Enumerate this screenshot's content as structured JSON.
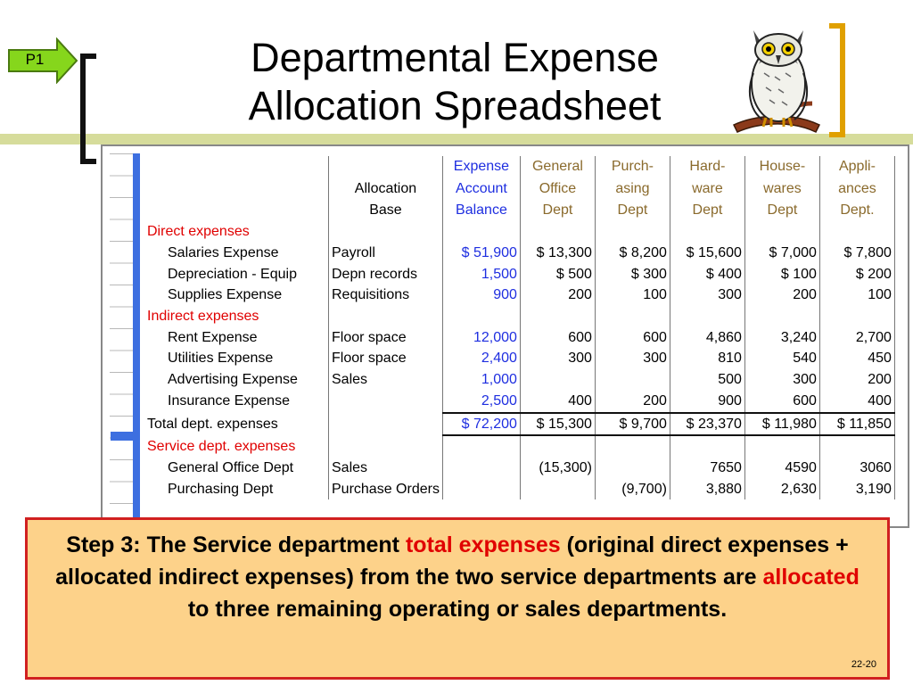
{
  "badge": {
    "label": "P1"
  },
  "title": {
    "line1": "Departmental Expense",
    "line2": "Allocation Spreadsheet"
  },
  "colors": {
    "callout_bg": "#fdd28a",
    "callout_border": "#d12020",
    "highlight": "#e00000",
    "balance_blue": "#1e2ee0",
    "dept_brown": "#8a6a2c",
    "bar": "#d6dc9b"
  },
  "sheet": {
    "headers": {
      "base": [
        "",
        "Allocation",
        "Base"
      ],
      "balance": [
        "Expense",
        "Account",
        "Balance"
      ],
      "general": [
        "General",
        "Office",
        "Dept"
      ],
      "purchasing": [
        "Purch-",
        "asing",
        "Dept"
      ],
      "hardware": [
        "Hard-",
        "ware",
        "Dept"
      ],
      "housewares": [
        "House-",
        "wares",
        "Dept"
      ],
      "appliances": [
        "Appli-",
        "ances",
        "Dept."
      ]
    },
    "direct_label": "Direct expenses",
    "indirect_label": "Indirect expenses",
    "service_label": "Service dept. expenses",
    "direct_rows": [
      {
        "label": "Salaries Expense",
        "base": "Payroll",
        "bal": "$ 51,900",
        "c1": "$  13,300",
        "c2": "$   8,200",
        "c3": "$   15,600",
        "c4": "$    7,000",
        "c5": "$    7,800"
      },
      {
        "label": "Depreciation - Equip",
        "base": "Depn records",
        "bal": "1,500",
        "c1": "$       500",
        "c2": "$       300",
        "c3": "$         400",
        "c4": "$       100",
        "c5": "$       200"
      },
      {
        "label": "Supplies Expense",
        "base": "Requisitions",
        "bal": "900",
        "c1": "200",
        "c2": "100",
        "c3": "300",
        "c4": "200",
        "c5": "100"
      }
    ],
    "indirect_rows": [
      {
        "label": "Rent Expense",
        "base": "Floor space",
        "bal": "12,000",
        "c1": "600",
        "c2": "600",
        "c3": "4,860",
        "c4": "3,240",
        "c5": "2,700"
      },
      {
        "label": "Utilities Expense",
        "base": "Floor space",
        "bal": "2,400",
        "c1": "300",
        "c2": "300",
        "c3": "810",
        "c4": "540",
        "c5": "450"
      },
      {
        "label": "Advertising Expense",
        "base": "Sales",
        "bal": "1,000",
        "c1": "",
        "c2": "",
        "c3": "500",
        "c4": "300",
        "c5": "200"
      },
      {
        "label": "Insurance Expense",
        "base": "",
        "bal": "2,500",
        "c1": "400",
        "c2": "200",
        "c3": "900",
        "c4": "600",
        "c5": "400"
      }
    ],
    "total_row": {
      "label": "Total dept. expenses",
      "bal": "$ 72,200",
      "c1": "$  15,300",
      "c2": "$   9,700",
      "c3": "$   23,370",
      "c4": "$  11,980",
      "c5": "$  11,850"
    },
    "service_rows": [
      {
        "label": "General Office Dept",
        "base": "Sales",
        "bal": "",
        "c1": "(15,300)",
        "c2": "",
        "c3": "7650",
        "c4": "4590",
        "c5": "3060"
      },
      {
        "label": "Purchasing Dept",
        "base": "Purchase Orders",
        "bal": "",
        "c1": "",
        "c2": "(9,700)",
        "c3": "3,880",
        "c4": "2,630",
        "c5": "3,190"
      }
    ]
  },
  "callout": {
    "part1": "Step 3:  The Service department ",
    "hl1": "total expenses",
    "part2": " (original direct expenses + allocated indirect expenses) from the two service departments are ",
    "hl2": "allocated",
    "part3": " to three remaining operating or sales departments."
  },
  "page": {
    "number": "22-20"
  },
  "icons": {
    "owl": "owl-illustration",
    "arrow": "arrow-badge-icon"
  }
}
